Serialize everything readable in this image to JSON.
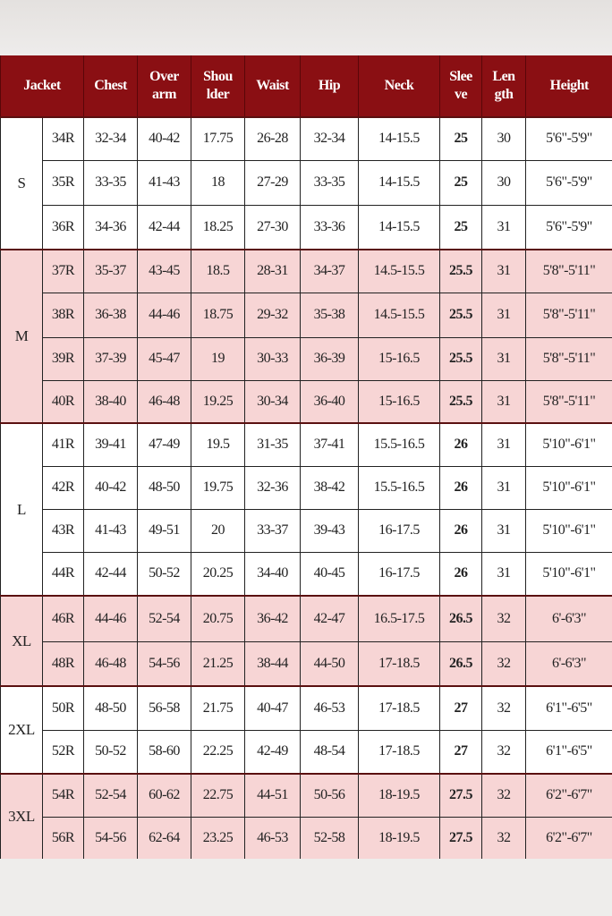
{
  "headers": [
    "Jacket",
    "Chest",
    "Over arm",
    "Shou lder",
    "Waist",
    "Hip",
    "Neck",
    "Slee ve",
    "Len gth",
    "Height"
  ],
  "header_lines": [
    [
      "Jacket"
    ],
    [
      "Chest"
    ],
    [
      "Over",
      "arm"
    ],
    [
      "Shou",
      "lder"
    ],
    [
      "Waist"
    ],
    [
      "Hip"
    ],
    [
      "Neck"
    ],
    [
      "Slee",
      "ve"
    ],
    [
      "Len",
      "gth"
    ],
    [
      "Height"
    ]
  ],
  "colors": {
    "header": "#8a0f13",
    "pink_row": "#f7d5d5",
    "white_row": "#ffffff"
  },
  "groups": [
    {
      "size": "S",
      "shade": "white",
      "rows": [
        [
          "34R",
          "32-34",
          "40-42",
          "17.75",
          "26-28",
          "32-34",
          "14-15.5",
          "25",
          "30",
          "5'6\"-5'9\""
        ],
        [
          "35R",
          "33-35",
          "41-43",
          "18",
          "27-29",
          "33-35",
          "14-15.5",
          "25",
          "30",
          "5'6\"-5'9\""
        ],
        [
          "36R",
          "34-36",
          "42-44",
          "18.25",
          "27-30",
          "33-36",
          "14-15.5",
          "25",
          "31",
          "5'6\"-5'9\""
        ]
      ]
    },
    {
      "size": "M",
      "shade": "pink",
      "rows": [
        [
          "37R",
          "35-37",
          "43-45",
          "18.5",
          "28-31",
          "34-37",
          "14.5-15.5",
          "25.5",
          "31",
          "5'8\"-5'11\""
        ],
        [
          "38R",
          "36-38",
          "44-46",
          "18.75",
          "29-32",
          "35-38",
          "14.5-15.5",
          "25.5",
          "31",
          "5'8\"-5'11\""
        ],
        [
          "39R",
          "37-39",
          "45-47",
          "19",
          "30-33",
          "36-39",
          "15-16.5",
          "25.5",
          "31",
          "5'8\"-5'11\""
        ],
        [
          "40R",
          "38-40",
          "46-48",
          "19.25",
          "30-34",
          "36-40",
          "15-16.5",
          "25.5",
          "31",
          "5'8\"-5'11\""
        ]
      ]
    },
    {
      "size": "L",
      "shade": "white",
      "rows": [
        [
          "41R",
          "39-41",
          "47-49",
          "19.5",
          "31-35",
          "37-41",
          "15.5-16.5",
          "26",
          "31",
          "5'10\"-6'1\""
        ],
        [
          "42R",
          "40-42",
          "48-50",
          "19.75",
          "32-36",
          "38-42",
          "15.5-16.5",
          "26",
          "31",
          "5'10\"-6'1\""
        ],
        [
          "43R",
          "41-43",
          "49-51",
          "20",
          "33-37",
          "39-43",
          "16-17.5",
          "26",
          "31",
          "5'10\"-6'1\""
        ],
        [
          "44R",
          "42-44",
          "50-52",
          "20.25",
          "34-40",
          "40-45",
          "16-17.5",
          "26",
          "31",
          "5'10\"-6'1\""
        ]
      ]
    },
    {
      "size": "XL",
      "shade": "pink",
      "rows": [
        [
          "46R",
          "44-46",
          "52-54",
          "20.75",
          "36-42",
          "42-47",
          "16.5-17.5",
          "26.5",
          "32",
          "6'-6'3\""
        ],
        [
          "48R",
          "46-48",
          "54-56",
          "21.25",
          "38-44",
          "44-50",
          "17-18.5",
          "26.5",
          "32",
          "6'-6'3\""
        ]
      ]
    },
    {
      "size": "2XL",
      "shade": "white",
      "rows": [
        [
          "50R",
          "48-50",
          "56-58",
          "21.75",
          "40-47",
          "46-53",
          "17-18.5",
          "27",
          "32",
          "6'1\"-6'5\""
        ],
        [
          "52R",
          "50-52",
          "58-60",
          "22.25",
          "42-49",
          "48-54",
          "17-18.5",
          "27",
          "32",
          "6'1\"-6'5\""
        ]
      ]
    },
    {
      "size": "3XL",
      "shade": "pink",
      "rows": [
        [
          "54R",
          "52-54",
          "60-62",
          "22.75",
          "44-51",
          "50-56",
          "18-19.5",
          "27.5",
          "32",
          "6'2\"-6'7\""
        ],
        [
          "56R",
          "54-56",
          "62-64",
          "23.25",
          "46-53",
          "52-58",
          "18-19.5",
          "27.5",
          "32",
          "6'2\"-6'7\""
        ]
      ]
    }
  ]
}
